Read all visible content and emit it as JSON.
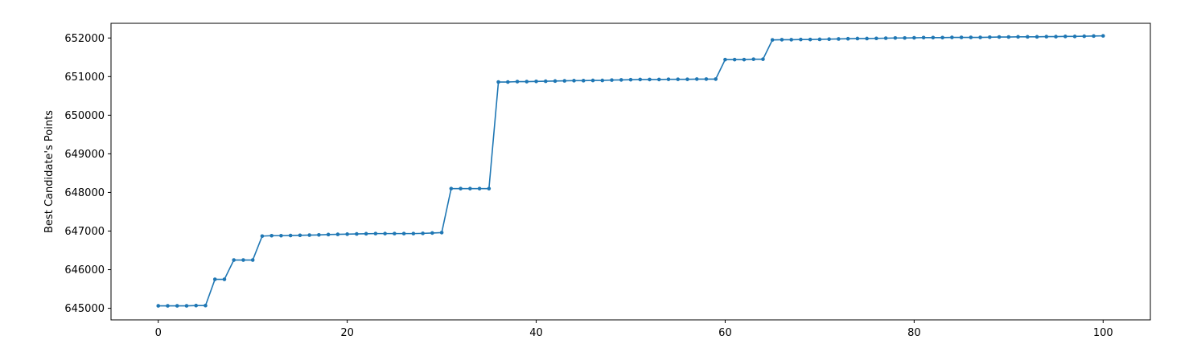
{
  "chart_data": {
    "type": "line",
    "title": "",
    "xlabel": "",
    "ylabel": "Best Candidate's Points",
    "xlim": [
      -5,
      105
    ],
    "ylim": [
      644700,
      652380
    ],
    "xticks": [
      0,
      20,
      40,
      60,
      80,
      100
    ],
    "xtick_labels": [
      "0",
      "20",
      "40",
      "60",
      "80",
      "100"
    ],
    "yticks": [
      645000,
      646000,
      647000,
      648000,
      649000,
      650000,
      651000,
      652000
    ],
    "ytick_labels": [
      "645000",
      "646000",
      "647000",
      "648000",
      "649000",
      "650000",
      "651000",
      "652000"
    ],
    "grid": false,
    "marker": "circle",
    "line_color": "#1f77b4",
    "series": [
      {
        "x": [
          0,
          1,
          2,
          3,
          4,
          5,
          6,
          7,
          8,
          9,
          10,
          11,
          12,
          13,
          14,
          15,
          16,
          17,
          18,
          19,
          20,
          21,
          22,
          23,
          24,
          25,
          26,
          27,
          28,
          29,
          30,
          31,
          32,
          33,
          34,
          35,
          36,
          37,
          38,
          39,
          40,
          41,
          42,
          43,
          44,
          45,
          46,
          47,
          48,
          49,
          50,
          51,
          52,
          53,
          54,
          55,
          56,
          57,
          58,
          59,
          60,
          61,
          62,
          63,
          64,
          65,
          66,
          67,
          68,
          69,
          70,
          71,
          72,
          73,
          74,
          75,
          76,
          77,
          78,
          79,
          80,
          81,
          82,
          83,
          84,
          85,
          86,
          87,
          88,
          89,
          90,
          91,
          92,
          93,
          94,
          95,
          96,
          97,
          98,
          99,
          100
        ],
        "values": [
          645063,
          645063,
          645063,
          645063,
          645070,
          645070,
          645750,
          645750,
          646250,
          646250,
          646250,
          646870,
          646880,
          646880,
          646885,
          646890,
          646895,
          646900,
          646910,
          646915,
          646920,
          646925,
          646930,
          646935,
          646935,
          646935,
          646935,
          646935,
          646940,
          646950,
          646960,
          648100,
          648100,
          648100,
          648100,
          648100,
          650860,
          650860,
          650870,
          650870,
          650875,
          650880,
          650885,
          650890,
          650895,
          650895,
          650900,
          650900,
          650910,
          650915,
          650920,
          650925,
          650925,
          650925,
          650930,
          650930,
          650930,
          650935,
          650935,
          650935,
          651440,
          651440,
          651440,
          651450,
          651450,
          651950,
          651955,
          651955,
          651960,
          651960,
          651965,
          651970,
          651975,
          651980,
          651985,
          651985,
          651990,
          651995,
          652000,
          652000,
          652005,
          652010,
          652010,
          652010,
          652015,
          652015,
          652015,
          652015,
          652020,
          652025,
          652025,
          652030,
          652030,
          652030,
          652035,
          652035,
          652040,
          652040,
          652045,
          652050,
          652055
        ]
      }
    ]
  }
}
